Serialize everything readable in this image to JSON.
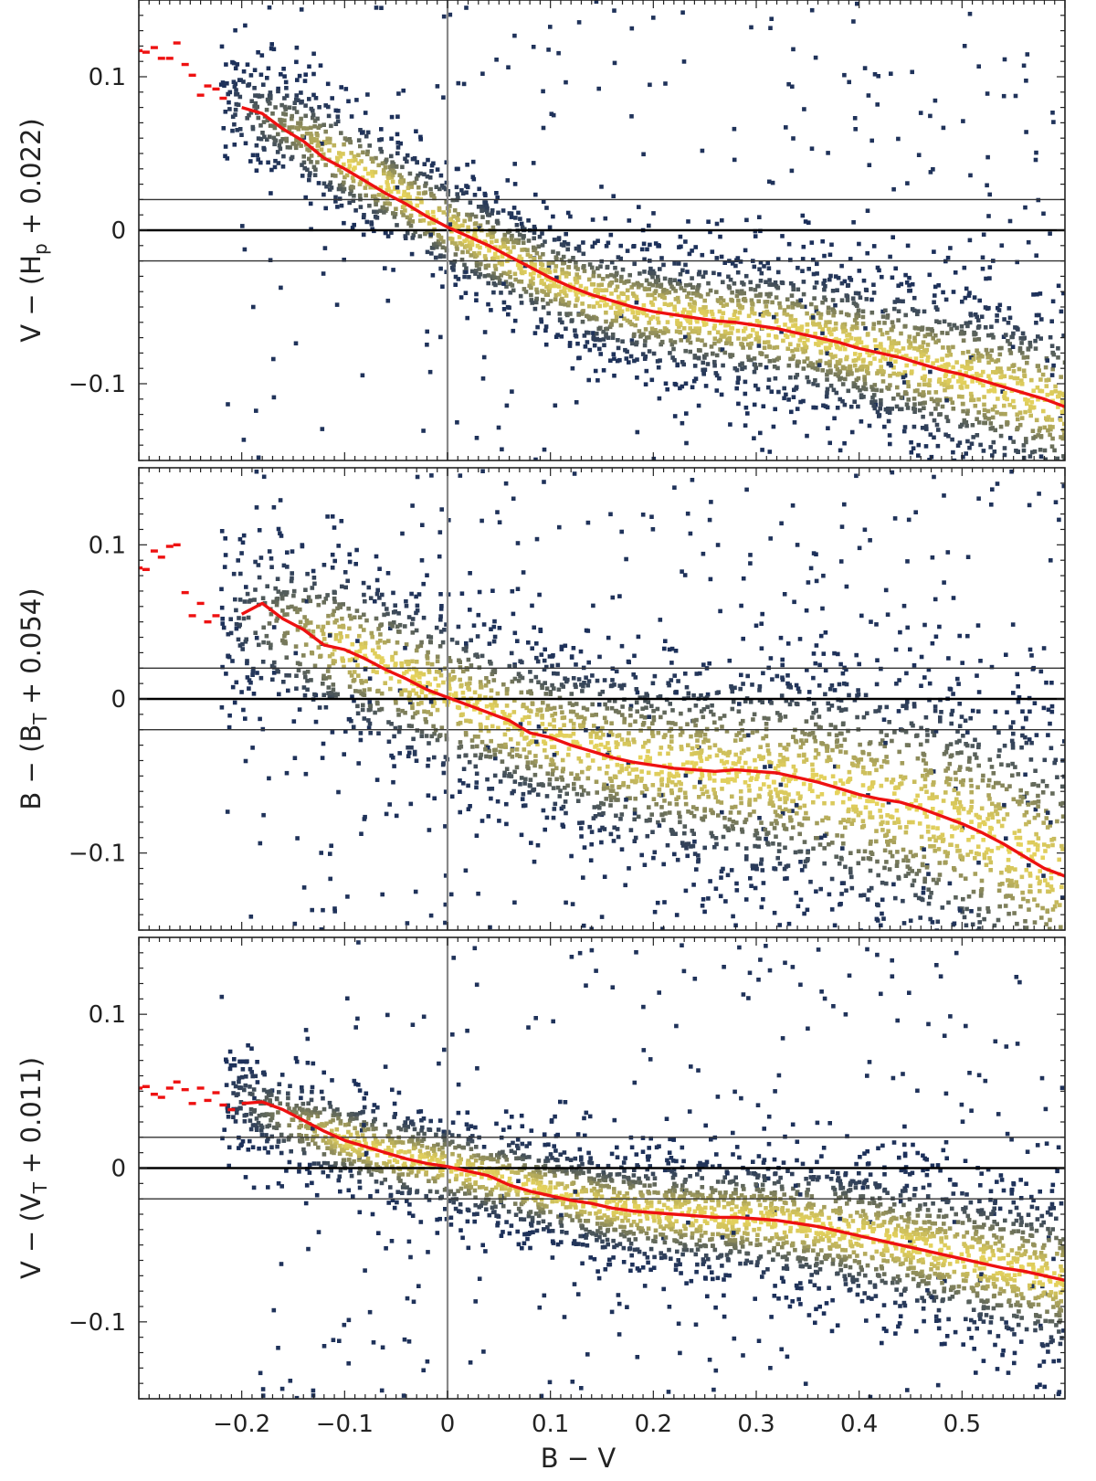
{
  "figure": {
    "xlabel": "B − V",
    "colors": {
      "points_low": "#1b2f5a",
      "points_high": "#f1dc5c",
      "fit_line": "#ee1111",
      "zero_line": "#000000",
      "band_line": "#333333",
      "vertical_line": "#888888",
      "frame": "#222222"
    }
  },
  "chart_data": [
    {
      "type": "scatter",
      "density_colored": true,
      "ylabel": "V − (Hp + 0.022)",
      "ylabel_parts": {
        "prefix": "V − (H",
        "sub": "p",
        "suffix": " + 0.022)"
      },
      "xlim": [
        -0.3,
        0.6
      ],
      "ylim": [
        -0.15,
        0.15
      ],
      "yticks": [
        -0.1,
        0,
        0.1
      ],
      "ytick_labels": [
        "−0.1",
        "0",
        "0.1"
      ],
      "xticks": [
        -0.2,
        -0.1,
        0,
        0.1,
        0.2,
        0.3,
        0.4,
        0.5
      ],
      "xtick_labels": [
        "−0.2",
        "−0.1",
        "0",
        "0.1",
        "0.2",
        "0.3",
        "0.4",
        "0.5"
      ],
      "show_xtick_labels": false,
      "hlines": {
        "solid": 0,
        "band": [
          0.02,
          -0.02
        ]
      },
      "vline": 0,
      "trend": {
        "x": [
          -0.2,
          -0.15,
          -0.1,
          -0.05,
          0,
          0.05,
          0.1,
          0.15,
          0.2,
          0.25,
          0.3,
          0.35,
          0.4,
          0.45,
          0.5,
          0.55,
          0.6
        ],
        "y": [
          0.08,
          0.065,
          0.045,
          0.025,
          0.003,
          -0.015,
          -0.032,
          -0.045,
          -0.053,
          -0.058,
          -0.062,
          -0.068,
          -0.077,
          -0.086,
          -0.095,
          -0.105,
          -0.115
        ]
      },
      "fit_line": {
        "x": [
          -0.2,
          -0.18,
          -0.16,
          -0.14,
          -0.12,
          -0.1,
          -0.08,
          -0.06,
          -0.04,
          -0.02,
          0,
          0.02,
          0.04,
          0.06,
          0.08,
          0.1,
          0.12,
          0.14,
          0.16,
          0.18,
          0.2,
          0.22,
          0.24,
          0.26,
          0.28,
          0.3,
          0.32,
          0.34,
          0.36,
          0.38,
          0.4,
          0.42,
          0.44,
          0.46,
          0.48,
          0.5,
          0.52,
          0.54,
          0.56,
          0.58,
          0.6
        ],
        "y": [
          0.08,
          0.076,
          0.066,
          0.058,
          0.047,
          0.04,
          0.032,
          0.024,
          0.017,
          0.009,
          0.002,
          -0.004,
          -0.01,
          -0.017,
          -0.024,
          -0.031,
          -0.037,
          -0.042,
          -0.046,
          -0.05,
          -0.053,
          -0.055,
          -0.057,
          -0.059,
          -0.06,
          -0.062,
          -0.064,
          -0.067,
          -0.07,
          -0.073,
          -0.077,
          -0.08,
          -0.083,
          -0.087,
          -0.091,
          -0.094,
          -0.098,
          -0.102,
          -0.106,
          -0.11,
          -0.115
        ]
      },
      "fit_fragments": {
        "x": [
          -0.3,
          -0.293,
          -0.285,
          -0.278,
          -0.27,
          -0.263,
          -0.255,
          -0.248,
          -0.24,
          -0.233,
          -0.225,
          -0.218
        ],
        "y": [
          0.117,
          0.116,
          0.119,
          0.112,
          0.112,
          0.122,
          0.108,
          0.101,
          0.088,
          0.094,
          0.092,
          0.086
        ]
      },
      "scatter_spread": 0.012,
      "outlier_fraction": 0.1
    },
    {
      "type": "scatter",
      "density_colored": true,
      "ylabel": "B − (BT + 0.054)",
      "ylabel_parts": {
        "prefix": "B − (B",
        "sub": "T",
        "suffix": " + 0.054)"
      },
      "xlim": [
        -0.3,
        0.6
      ],
      "ylim": [
        -0.15,
        0.15
      ],
      "yticks": [
        -0.1,
        0,
        0.1
      ],
      "ytick_labels": [
        "−0.1",
        "0",
        "0.1"
      ],
      "xticks": [
        -0.2,
        -0.1,
        0,
        0.1,
        0.2,
        0.3,
        0.4,
        0.5
      ],
      "xtick_labels": [
        "−0.2",
        "−0.1",
        "0",
        "0.1",
        "0.2",
        "0.3",
        "0.4",
        "0.5"
      ],
      "show_xtick_labels": false,
      "hlines": {
        "solid": 0,
        "band": [
          0.02,
          -0.02
        ]
      },
      "vline": 0,
      "trend": {
        "x": [
          -0.2,
          -0.15,
          -0.1,
          -0.05,
          0,
          0.05,
          0.1,
          0.15,
          0.2,
          0.25,
          0.3,
          0.35,
          0.4,
          0.45,
          0.5,
          0.55,
          0.6
        ],
        "y": [
          0.055,
          0.045,
          0.033,
          0.018,
          0.002,
          -0.012,
          -0.025,
          -0.035,
          -0.042,
          -0.046,
          -0.049,
          -0.054,
          -0.062,
          -0.07,
          -0.082,
          -0.097,
          -0.115
        ]
      },
      "fit_line": {
        "x": [
          -0.2,
          -0.18,
          -0.16,
          -0.14,
          -0.12,
          -0.1,
          -0.08,
          -0.06,
          -0.04,
          -0.02,
          0,
          0.02,
          0.04,
          0.06,
          0.08,
          0.1,
          0.12,
          0.14,
          0.16,
          0.18,
          0.2,
          0.22,
          0.24,
          0.26,
          0.28,
          0.3,
          0.32,
          0.34,
          0.36,
          0.38,
          0.4,
          0.42,
          0.44,
          0.46,
          0.48,
          0.5,
          0.52,
          0.54,
          0.56,
          0.58,
          0.6
        ],
        "y": [
          0.055,
          0.062,
          0.052,
          0.045,
          0.035,
          0.032,
          0.026,
          0.019,
          0.013,
          0.006,
          0.001,
          -0.004,
          -0.009,
          -0.014,
          -0.022,
          -0.025,
          -0.03,
          -0.034,
          -0.038,
          -0.041,
          -0.043,
          -0.045,
          -0.046,
          -0.047,
          -0.046,
          -0.047,
          -0.048,
          -0.051,
          -0.054,
          -0.058,
          -0.062,
          -0.065,
          -0.067,
          -0.071,
          -0.076,
          -0.081,
          -0.087,
          -0.094,
          -0.102,
          -0.11,
          -0.115
        ]
      },
      "fit_fragments": {
        "x": [
          -0.3,
          -0.293,
          -0.285,
          -0.278,
          -0.27,
          -0.263,
          -0.255,
          -0.248,
          -0.24,
          -0.233,
          -0.225
        ],
        "y": [
          0.085,
          0.084,
          0.096,
          0.092,
          0.099,
          0.1,
          0.069,
          0.054,
          0.062,
          0.05,
          0.054
        ]
      },
      "scatter_spread": 0.02,
      "outlier_fraction": 0.12
    },
    {
      "type": "scatter",
      "density_colored": true,
      "ylabel": "V − (VT + 0.011)",
      "ylabel_parts": {
        "prefix": "V − (V",
        "sub": "T",
        "suffix": " + 0.011)"
      },
      "xlabel": "B − V",
      "xlim": [
        -0.3,
        0.6
      ],
      "ylim": [
        -0.15,
        0.15
      ],
      "yticks": [
        -0.1,
        0,
        0.1
      ],
      "ytick_labels": [
        "−0.1",
        "0",
        "0.1"
      ],
      "xticks": [
        -0.2,
        -0.1,
        0,
        0.1,
        0.2,
        0.3,
        0.4,
        0.5
      ],
      "xtick_labels": [
        "−0.2",
        "−0.1",
        "0",
        "0.1",
        "0.2",
        "0.3",
        "0.4",
        "0.5"
      ],
      "show_xtick_labels": true,
      "hlines": {
        "solid": 0,
        "band": [
          0.02,
          -0.02
        ]
      },
      "vline": 0,
      "trend": {
        "x": [
          -0.2,
          -0.15,
          -0.1,
          -0.05,
          0,
          0.05,
          0.1,
          0.15,
          0.2,
          0.25,
          0.3,
          0.35,
          0.4,
          0.45,
          0.5,
          0.55,
          0.6
        ],
        "y": [
          0.045,
          0.03,
          0.018,
          0.008,
          0.001,
          -0.007,
          -0.016,
          -0.024,
          -0.029,
          -0.031,
          -0.033,
          -0.037,
          -0.043,
          -0.05,
          -0.058,
          -0.066,
          -0.073
        ]
      },
      "fit_line": {
        "x": [
          -0.2,
          -0.18,
          -0.16,
          -0.14,
          -0.12,
          -0.1,
          -0.08,
          -0.06,
          -0.04,
          -0.02,
          0,
          0.02,
          0.04,
          0.06,
          0.08,
          0.1,
          0.12,
          0.14,
          0.16,
          0.18,
          0.2,
          0.22,
          0.24,
          0.26,
          0.28,
          0.3,
          0.32,
          0.34,
          0.36,
          0.38,
          0.4,
          0.42,
          0.44,
          0.46,
          0.48,
          0.5,
          0.52,
          0.54,
          0.56,
          0.58,
          0.6
        ],
        "y": [
          0.042,
          0.043,
          0.038,
          0.031,
          0.024,
          0.018,
          0.014,
          0.01,
          0.006,
          0.003,
          0.001,
          -0.002,
          -0.005,
          -0.011,
          -0.015,
          -0.018,
          -0.021,
          -0.023,
          -0.026,
          -0.028,
          -0.029,
          -0.03,
          -0.031,
          -0.032,
          -0.032,
          -0.033,
          -0.034,
          -0.036,
          -0.038,
          -0.041,
          -0.044,
          -0.047,
          -0.05,
          -0.053,
          -0.056,
          -0.059,
          -0.062,
          -0.065,
          -0.067,
          -0.07,
          -0.073
        ]
      },
      "fit_fragments": {
        "x": [
          -0.3,
          -0.293,
          -0.285,
          -0.278,
          -0.27,
          -0.263,
          -0.255,
          -0.248,
          -0.24,
          -0.233,
          -0.225,
          -0.218,
          -0.21
        ],
        "y": [
          0.052,
          0.053,
          0.048,
          0.046,
          0.052,
          0.056,
          0.051,
          0.042,
          0.052,
          0.044,
          0.049,
          0.041,
          0.038
        ]
      },
      "scatter_spread": 0.011,
      "outlier_fraction": 0.1
    }
  ]
}
